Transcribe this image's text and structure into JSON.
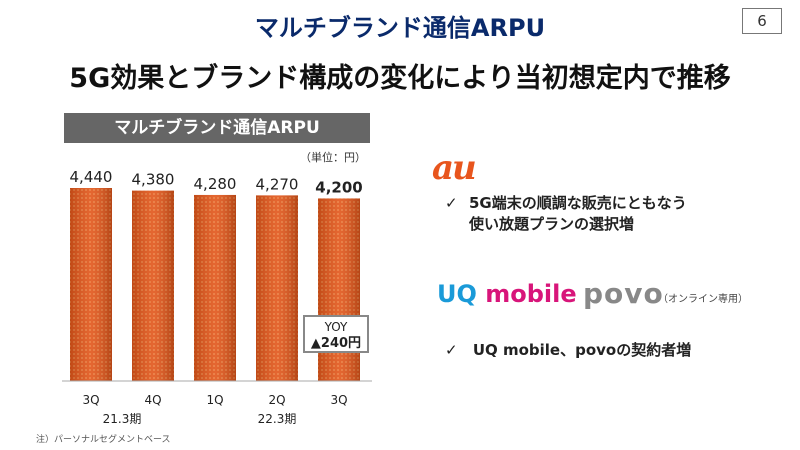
{
  "header": {
    "title": "マルチブランド通信ARPU",
    "page_number": "6",
    "subtitle": "5G効果とブランド構成の変化により当初想定内で推移"
  },
  "chart_data": {
    "type": "bar",
    "title": "マルチブランド通信ARPU",
    "unit_label": "（単位：円）",
    "categories": [
      "3Q",
      "4Q",
      "1Q",
      "2Q",
      "3Q"
    ],
    "period_labels": [
      "21.3期",
      "22.3期"
    ],
    "values": [
      4440,
      4380,
      4280,
      4270,
      4200
    ],
    "value_labels": [
      "4,440",
      "4,380",
      "4,280",
      "4,270",
      "4,200"
    ],
    "bar_color": "#e2561a",
    "ylim": [
      0,
      4440
    ],
    "annotation": {
      "line1": "YOY",
      "line2": "▲240円"
    }
  },
  "note": "注）パーソナルセグメントベース",
  "right": {
    "au_logo": "au",
    "bullet1_line1": "5G端末の順調な販売にともなう",
    "bullet1_line2": "使い放題プランの選択増",
    "uq_logo_a": "UQ",
    "uq_logo_b": " mobile",
    "povo_logo": "povo",
    "online_only": "（オンライン専用）",
    "bullet2": "UQ mobile、povoの契約者増",
    "check": "✓"
  }
}
